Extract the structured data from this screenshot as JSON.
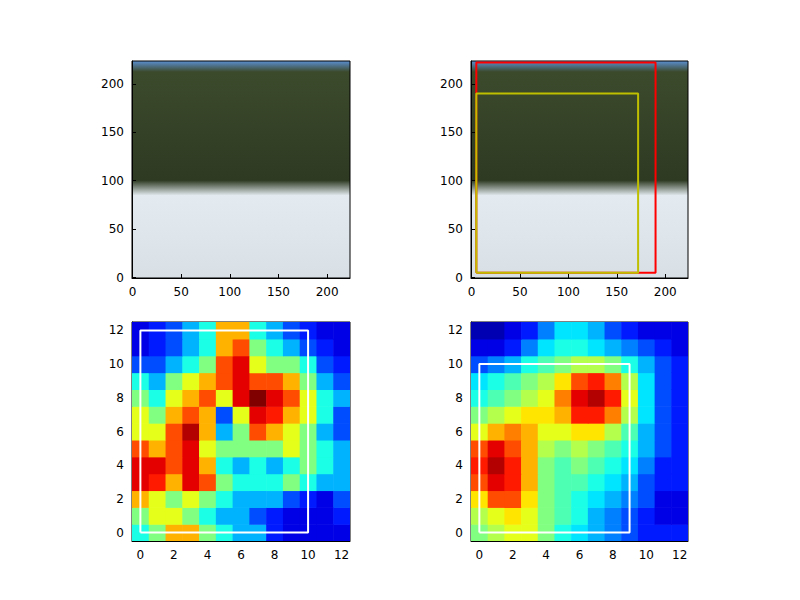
{
  "chart_data": [
    {
      "type": "image",
      "xlim": [
        -0.5,
        223.5
      ],
      "ylim": [
        223.5,
        -0.5
      ],
      "xticks": [
        0,
        50,
        100,
        150,
        200
      ],
      "yticks": [
        0,
        50,
        100,
        150,
        200
      ],
      "boxes": []
    },
    {
      "type": "image",
      "xlim": [
        -0.5,
        223.5
      ],
      "ylim": [
        223.5,
        -0.5
      ],
      "xticks": [
        0,
        50,
        100,
        150,
        200
      ],
      "yticks": [
        0,
        50,
        100,
        150,
        200
      ],
      "boxes": [
        {
          "xmin": 5,
          "xmax": 190,
          "ymin": 5,
          "ymax": 222,
          "color": "#ff0000"
        },
        {
          "xmin": 5,
          "xmax": 172,
          "ymin": 5,
          "ymax": 190,
          "color": "#bfbf00"
        }
      ]
    },
    {
      "type": "heatmap",
      "xlim": [
        -0.5,
        12.5
      ],
      "ylim": [
        12.5,
        -0.5
      ],
      "xticks": [
        0,
        2,
        4,
        6,
        8,
        10,
        12
      ],
      "yticks": [
        0,
        2,
        4,
        6,
        8,
        10,
        12
      ],
      "color_range": [
        0,
        1
      ],
      "cells": [
        [
          0.4,
          0.5,
          0.7,
          0.7,
          0.5,
          0.4,
          0.3,
          0.3,
          0.15,
          0.1,
          0.1,
          0.1,
          0.1
        ],
        [
          0.5,
          0.6,
          0.6,
          0.5,
          0.4,
          0.3,
          0.3,
          0.2,
          0.15,
          0.1,
          0.1,
          0.1,
          0.15
        ],
        [
          0.7,
          0.6,
          0.5,
          0.6,
          0.5,
          0.4,
          0.3,
          0.3,
          0.3,
          0.2,
          0.15,
          0.1,
          0.2
        ],
        [
          0.9,
          0.85,
          0.7,
          0.9,
          0.8,
          0.5,
          0.4,
          0.4,
          0.4,
          0.5,
          0.4,
          0.3,
          0.3
        ],
        [
          0.9,
          0.9,
          0.8,
          0.9,
          0.7,
          0.4,
          0.3,
          0.4,
          0.3,
          0.4,
          0.5,
          0.4,
          0.3
        ],
        [
          0.8,
          0.7,
          0.8,
          0.9,
          0.6,
          0.5,
          0.5,
          0.5,
          0.5,
          0.6,
          0.5,
          0.4,
          0.3
        ],
        [
          0.6,
          0.6,
          0.8,
          0.95,
          0.7,
          0.3,
          0.5,
          0.8,
          0.7,
          0.6,
          0.5,
          0.3,
          0.2
        ],
        [
          0.6,
          0.5,
          0.7,
          0.8,
          0.7,
          0.2,
          0.6,
          0.9,
          0.85,
          0.7,
          0.6,
          0.4,
          0.2
        ],
        [
          0.5,
          0.4,
          0.6,
          0.7,
          0.8,
          0.6,
          0.9,
          1.0,
          0.9,
          0.8,
          0.6,
          0.4,
          0.3
        ],
        [
          0.4,
          0.3,
          0.5,
          0.6,
          0.7,
          0.8,
          0.9,
          0.8,
          0.8,
          0.7,
          0.5,
          0.3,
          0.2
        ],
        [
          0.2,
          0.2,
          0.3,
          0.4,
          0.5,
          0.8,
          0.9,
          0.6,
          0.5,
          0.5,
          0.4,
          0.2,
          0.15
        ],
        [
          0.1,
          0.15,
          0.2,
          0.3,
          0.4,
          0.7,
          0.8,
          0.5,
          0.4,
          0.3,
          0.2,
          0.15,
          0.1
        ],
        [
          0.1,
          0.15,
          0.2,
          0.3,
          0.4,
          0.7,
          0.7,
          0.4,
          0.3,
          0.2,
          0.15,
          0.1,
          0.1
        ]
      ],
      "boxes": [
        {
          "xmin": 0,
          "xmax": 10,
          "ymin": 0,
          "ymax": 12,
          "color": "#ffffff"
        }
      ]
    },
    {
      "type": "heatmap",
      "xlim": [
        -0.5,
        12.5
      ],
      "ylim": [
        12.5,
        -0.5
      ],
      "xticks": [
        0,
        2,
        4,
        6,
        8,
        10,
        12
      ],
      "yticks": [
        0,
        2,
        4,
        6,
        8,
        10,
        12
      ],
      "color_range": [
        0,
        1
      ],
      "cells": [
        [
          0.5,
          0.55,
          0.6,
          0.6,
          0.5,
          0.4,
          0.35,
          0.3,
          0.25,
          0.2,
          0.15,
          0.15,
          0.15
        ],
        [
          0.55,
          0.6,
          0.65,
          0.6,
          0.5,
          0.45,
          0.4,
          0.3,
          0.25,
          0.2,
          0.15,
          0.1,
          0.1
        ],
        [
          0.65,
          0.8,
          0.8,
          0.65,
          0.5,
          0.45,
          0.4,
          0.35,
          0.3,
          0.25,
          0.2,
          0.1,
          0.1
        ],
        [
          0.8,
          0.9,
          0.85,
          0.7,
          0.5,
          0.45,
          0.45,
          0.4,
          0.35,
          0.3,
          0.2,
          0.15,
          0.15
        ],
        [
          0.85,
          0.95,
          0.85,
          0.7,
          0.5,
          0.45,
          0.5,
          0.45,
          0.4,
          0.35,
          0.25,
          0.15,
          0.15
        ],
        [
          0.8,
          0.9,
          0.8,
          0.7,
          0.55,
          0.5,
          0.55,
          0.5,
          0.45,
          0.4,
          0.3,
          0.2,
          0.15
        ],
        [
          0.6,
          0.7,
          0.75,
          0.7,
          0.6,
          0.6,
          0.65,
          0.65,
          0.55,
          0.45,
          0.3,
          0.2,
          0.15
        ],
        [
          0.5,
          0.55,
          0.6,
          0.65,
          0.65,
          0.7,
          0.85,
          0.85,
          0.75,
          0.55,
          0.35,
          0.2,
          0.15
        ],
        [
          0.4,
          0.45,
          0.5,
          0.55,
          0.6,
          0.75,
          0.9,
          0.95,
          0.85,
          0.6,
          0.35,
          0.2,
          0.15
        ],
        [
          0.35,
          0.4,
          0.45,
          0.5,
          0.55,
          0.65,
          0.8,
          0.85,
          0.75,
          0.55,
          0.35,
          0.2,
          0.15
        ],
        [
          0.2,
          0.25,
          0.3,
          0.4,
          0.45,
          0.5,
          0.55,
          0.55,
          0.5,
          0.4,
          0.3,
          0.2,
          0.15
        ],
        [
          0.1,
          0.1,
          0.15,
          0.25,
          0.35,
          0.4,
          0.4,
          0.35,
          0.3,
          0.25,
          0.2,
          0.15,
          0.1
        ],
        [
          0.05,
          0.05,
          0.1,
          0.15,
          0.25,
          0.35,
          0.35,
          0.3,
          0.2,
          0.15,
          0.1,
          0.1,
          0.1
        ]
      ],
      "boxes": [
        {
          "xmin": 0,
          "xmax": 9,
          "ymin": 0,
          "ymax": 10,
          "color": "#ffffff"
        }
      ]
    }
  ]
}
